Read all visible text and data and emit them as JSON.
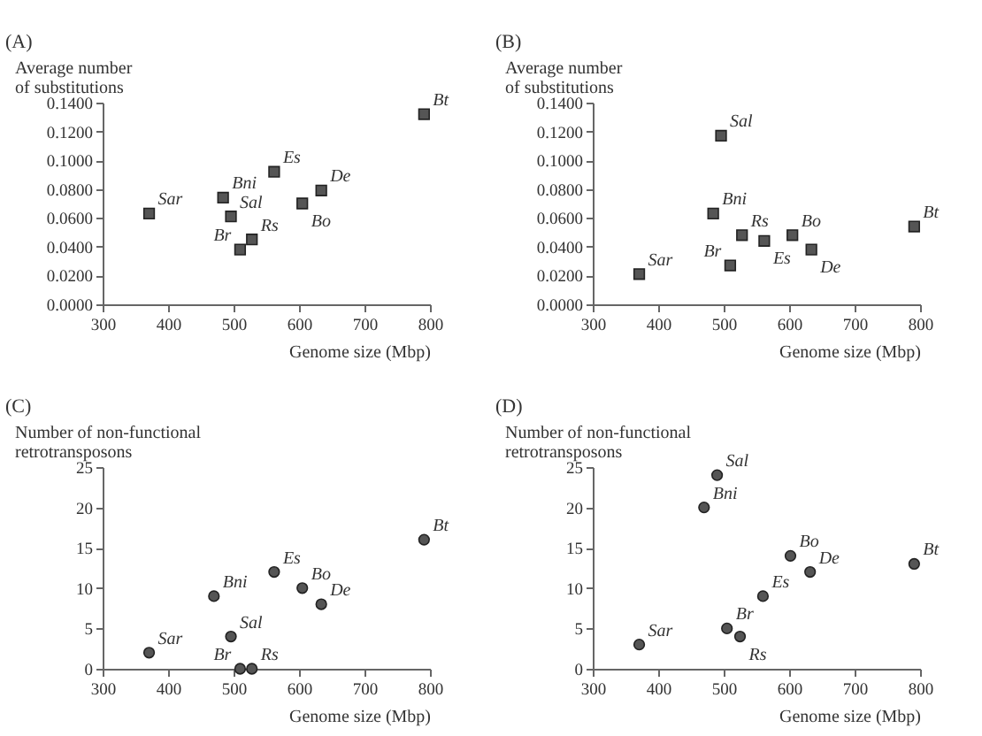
{
  "chart_data": [
    {
      "type": "scatter",
      "title": "(A)",
      "xlabel": "Genome size (Mbp)",
      "ylabel": "Average number\nof substitutions",
      "marker": "square",
      "color": "#555555",
      "x": [
        371,
        484,
        496,
        510,
        528,
        562,
        605,
        634,
        791
      ],
      "values": [
        0.063,
        0.074,
        0.061,
        0.038,
        0.045,
        0.092,
        0.07,
        0.079,
        0.132
      ],
      "xlim": [
        300,
        800
      ],
      "xticks": [
        300,
        400,
        500,
        600,
        700,
        800
      ],
      "ylim": [
        0,
        0.14
      ],
      "yticks": [
        {
          "value": 0,
          "label": "0.0000"
        },
        {
          "value": 0.02,
          "label": "0.0200"
        },
        {
          "value": 0.04,
          "label": "0.0400"
        },
        {
          "value": 0.06,
          "label": "0.0600"
        },
        {
          "value": 0.08,
          "label": "0.0800"
        },
        {
          "value": 0.1,
          "label": "0.1000"
        },
        {
          "value": 0.12,
          "label": "0.1200"
        },
        {
          "value": 0.14,
          "label": "0.1400"
        }
      ],
      "annotations": [
        {
          "text": "Sar",
          "x": 371,
          "y": 0.063
        },
        {
          "text": "Bni",
          "x": 484,
          "y": 0.074
        },
        {
          "text": "Sal",
          "x": 496,
          "y": 0.061
        },
        {
          "text": "Br",
          "x": 510,
          "y": 0.038
        },
        {
          "text": "Rs",
          "x": 528,
          "y": 0.045
        },
        {
          "text": "Es",
          "x": 562,
          "y": 0.092
        },
        {
          "text": "Bo",
          "x": 605,
          "y": 0.07
        },
        {
          "text": "De",
          "x": 634,
          "y": 0.079
        },
        {
          "text": "Bt",
          "x": 791,
          "y": 0.132
        }
      ]
    },
    {
      "type": "scatter",
      "title": "(B)",
      "xlabel": "Genome size (Mbp)",
      "ylabel": "Average number\nof substitutions",
      "marker": "square",
      "color": "#555555",
      "x": [
        371,
        484,
        496,
        510,
        528,
        562,
        605,
        634,
        791
      ],
      "values": [
        0.021,
        0.063,
        0.117,
        0.027,
        0.048,
        0.044,
        0.048,
        0.038,
        0.054
      ],
      "xlim": [
        300,
        800
      ],
      "xticks": [
        300,
        400,
        500,
        600,
        700,
        800
      ],
      "ylim": [
        0,
        0.14
      ],
      "yticks": [
        {
          "value": 0,
          "label": "0.0000"
        },
        {
          "value": 0.02,
          "label": "0.0200"
        },
        {
          "value": 0.04,
          "label": "0.0400"
        },
        {
          "value": 0.06,
          "label": "0.0600"
        },
        {
          "value": 0.08,
          "label": "0.0800"
        },
        {
          "value": 0.1,
          "label": "0.1000"
        },
        {
          "value": 0.12,
          "label": "0.1200"
        },
        {
          "value": 0.14,
          "label": "0.1400"
        }
      ],
      "annotations": [
        {
          "text": "Sar",
          "x": 371,
          "y": 0.021
        },
        {
          "text": "Bni",
          "x": 484,
          "y": 0.063
        },
        {
          "text": "Sal",
          "x": 496,
          "y": 0.117
        },
        {
          "text": "Br",
          "x": 510,
          "y": 0.027
        },
        {
          "text": "Rs",
          "x": 528,
          "y": 0.048
        },
        {
          "text": "Es",
          "x": 562,
          "y": 0.044
        },
        {
          "text": "Bo",
          "x": 605,
          "y": 0.048
        },
        {
          "text": "De",
          "x": 634,
          "y": 0.038
        },
        {
          "text": "Bt",
          "x": 791,
          "y": 0.054
        }
      ]
    },
    {
      "type": "scatter",
      "title": "(C)",
      "xlabel": "Genome size (Mbp)",
      "ylabel": "Number of non-functional\nretrotransposons",
      "marker": "circle",
      "color": "#555555",
      "x": [
        371,
        470,
        496,
        510,
        528,
        562,
        605,
        634,
        791
      ],
      "values": [
        2,
        9,
        4,
        0,
        0,
        12,
        10,
        8,
        16
      ],
      "xlim": [
        300,
        800
      ],
      "xticks": [
        300,
        400,
        500,
        600,
        700,
        800
      ],
      "ylim": [
        0,
        25
      ],
      "yticks": [
        0,
        5,
        10,
        15,
        20,
        25
      ],
      "annotations": [
        {
          "text": "Sar",
          "x": 371,
          "y": 2
        },
        {
          "text": "Bni",
          "x": 470,
          "y": 9
        },
        {
          "text": "Sal",
          "x": 496,
          "y": 4
        },
        {
          "text": "Br",
          "x": 510,
          "y": 0
        },
        {
          "text": "Rs",
          "x": 528,
          "y": 0
        },
        {
          "text": "Es",
          "x": 562,
          "y": 12
        },
        {
          "text": "Bo",
          "x": 605,
          "y": 10
        },
        {
          "text": "De",
          "x": 634,
          "y": 8
        },
        {
          "text": "Bt",
          "x": 791,
          "y": 16
        }
      ]
    },
    {
      "type": "scatter",
      "title": "(D)",
      "xlabel": "Genome size (Mbp)",
      "ylabel": "Number of non-functional\nretrotransposons",
      "marker": "circle",
      "color": "#555555",
      "x": [
        371,
        470,
        490,
        505,
        525,
        560,
        602,
        632,
        791
      ],
      "values": [
        3,
        20,
        24,
        5,
        4,
        9,
        14,
        12,
        13
      ],
      "xlim": [
        300,
        800
      ],
      "xticks": [
        300,
        400,
        500,
        600,
        700,
        800
      ],
      "ylim": [
        0,
        25
      ],
      "yticks": [
        0,
        5,
        10,
        15,
        20,
        25
      ],
      "annotations": [
        {
          "text": "Sar",
          "x": 371,
          "y": 3
        },
        {
          "text": "Bni",
          "x": 470,
          "y": 20
        },
        {
          "text": "Sal",
          "x": 490,
          "y": 24
        },
        {
          "text": "Br",
          "x": 505,
          "y": 5
        },
        {
          "text": "Rs",
          "x": 525,
          "y": 4
        },
        {
          "text": "Es",
          "x": 560,
          "y": 9
        },
        {
          "text": "Bo",
          "x": 602,
          "y": 14
        },
        {
          "text": "De",
          "x": 632,
          "y": 12
        },
        {
          "text": "Bt",
          "x": 791,
          "y": 13
        }
      ]
    }
  ]
}
